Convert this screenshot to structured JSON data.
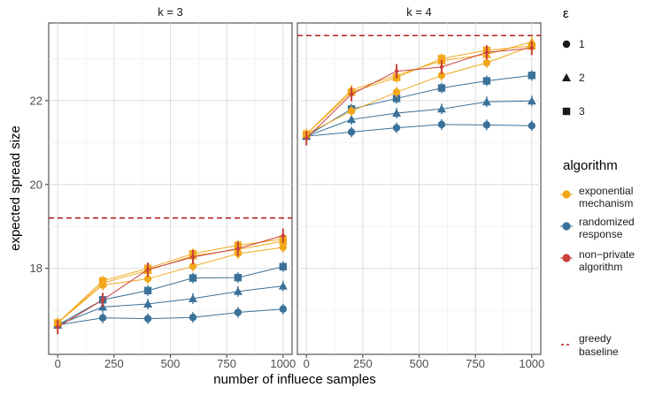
{
  "chart_data": {
    "type": "line",
    "xlabel": "number of influece samples",
    "ylabel": "expected spread  size",
    "x": [
      0,
      200,
      400,
      600,
      800,
      1000
    ],
    "x_ticks": [
      0,
      250,
      500,
      750,
      1000
    ],
    "xlim": [
      -40,
      1040
    ],
    "ylim": [
      15.95,
      23.85
    ],
    "y_ticks": [
      18,
      20,
      22
    ],
    "grid": true,
    "colors": {
      "exponential": "#F2A71B",
      "randomized": "#3A7199",
      "nonprivate": "#C8413A",
      "greedy": "#B22222"
    },
    "panels": [
      {
        "label": "k = 3",
        "greedy": 19.2,
        "series": [
          {
            "algorithm": "exponential",
            "eps": "1",
            "values": [
              16.7,
              17.6,
              17.75,
              18.05,
              18.35,
              18.5
            ]
          },
          {
            "algorithm": "exponential",
            "eps": "2",
            "values": [
              16.7,
              17.65,
              17.95,
              18.3,
              18.45,
              18.65
            ]
          },
          {
            "algorithm": "exponential",
            "eps": "3",
            "values": [
              16.7,
              17.7,
              18.0,
              18.35,
              18.55,
              18.7
            ]
          },
          {
            "algorithm": "randomized",
            "eps": "1",
            "values": [
              16.65,
              16.82,
              16.8,
              16.83,
              16.95,
              17.03
            ]
          },
          {
            "algorithm": "randomized",
            "eps": "2",
            "values": [
              16.65,
              17.08,
              17.15,
              17.28,
              17.45,
              17.58
            ]
          },
          {
            "algorithm": "randomized",
            "eps": "3",
            "values": [
              16.65,
              17.25,
              17.47,
              17.77,
              17.78,
              18.04
            ]
          },
          {
            "algorithm": "nonprivate",
            "eps": "1",
            "values": [
              16.6,
              17.25,
              17.97,
              18.27,
              18.47,
              18.78
            ]
          }
        ]
      },
      {
        "label": "k = 4",
        "greedy": 23.55,
        "series": [
          {
            "algorithm": "exponential",
            "eps": "1",
            "values": [
              21.2,
              21.75,
              22.2,
              22.6,
              22.9,
              23.3
            ]
          },
          {
            "algorithm": "exponential",
            "eps": "2",
            "values": [
              21.2,
              22.25,
              22.6,
              22.95,
              23.1,
              23.4
            ]
          },
          {
            "algorithm": "exponential",
            "eps": "3",
            "values": [
              21.2,
              22.2,
              22.55,
              23.0,
              23.2,
              23.3
            ]
          },
          {
            "algorithm": "randomized",
            "eps": "1",
            "values": [
              21.15,
              21.25,
              21.35,
              21.43,
              21.42,
              21.4
            ]
          },
          {
            "algorithm": "randomized",
            "eps": "2",
            "values": [
              21.15,
              21.55,
              21.7,
              21.8,
              21.97,
              21.99
            ]
          },
          {
            "algorithm": "randomized",
            "eps": "3",
            "values": [
              21.15,
              21.8,
              22.05,
              22.3,
              22.47,
              22.6
            ]
          },
          {
            "algorithm": "nonprivate",
            "eps": "1",
            "values": [
              21.1,
              22.15,
              22.7,
              22.8,
              23.15,
              23.25
            ]
          }
        ]
      }
    ],
    "legend": {
      "position": "right",
      "eps_title": "ε",
      "eps_items": [
        {
          "label": "1",
          "shape": "circle"
        },
        {
          "label": "2",
          "shape": "triangle"
        },
        {
          "label": "3",
          "shape": "square"
        }
      ],
      "alg_title": "algorithm",
      "alg_items": [
        {
          "key": "exponential",
          "line1": "exponential",
          "line2": "mechanism"
        },
        {
          "key": "randomized",
          "line1": "randomized",
          "line2": "response"
        },
        {
          "key": "nonprivate",
          "line1": "non−private",
          "line2": "algorithm"
        }
      ],
      "greedy_line1": "greedy",
      "greedy_line2": "baseline"
    }
  }
}
